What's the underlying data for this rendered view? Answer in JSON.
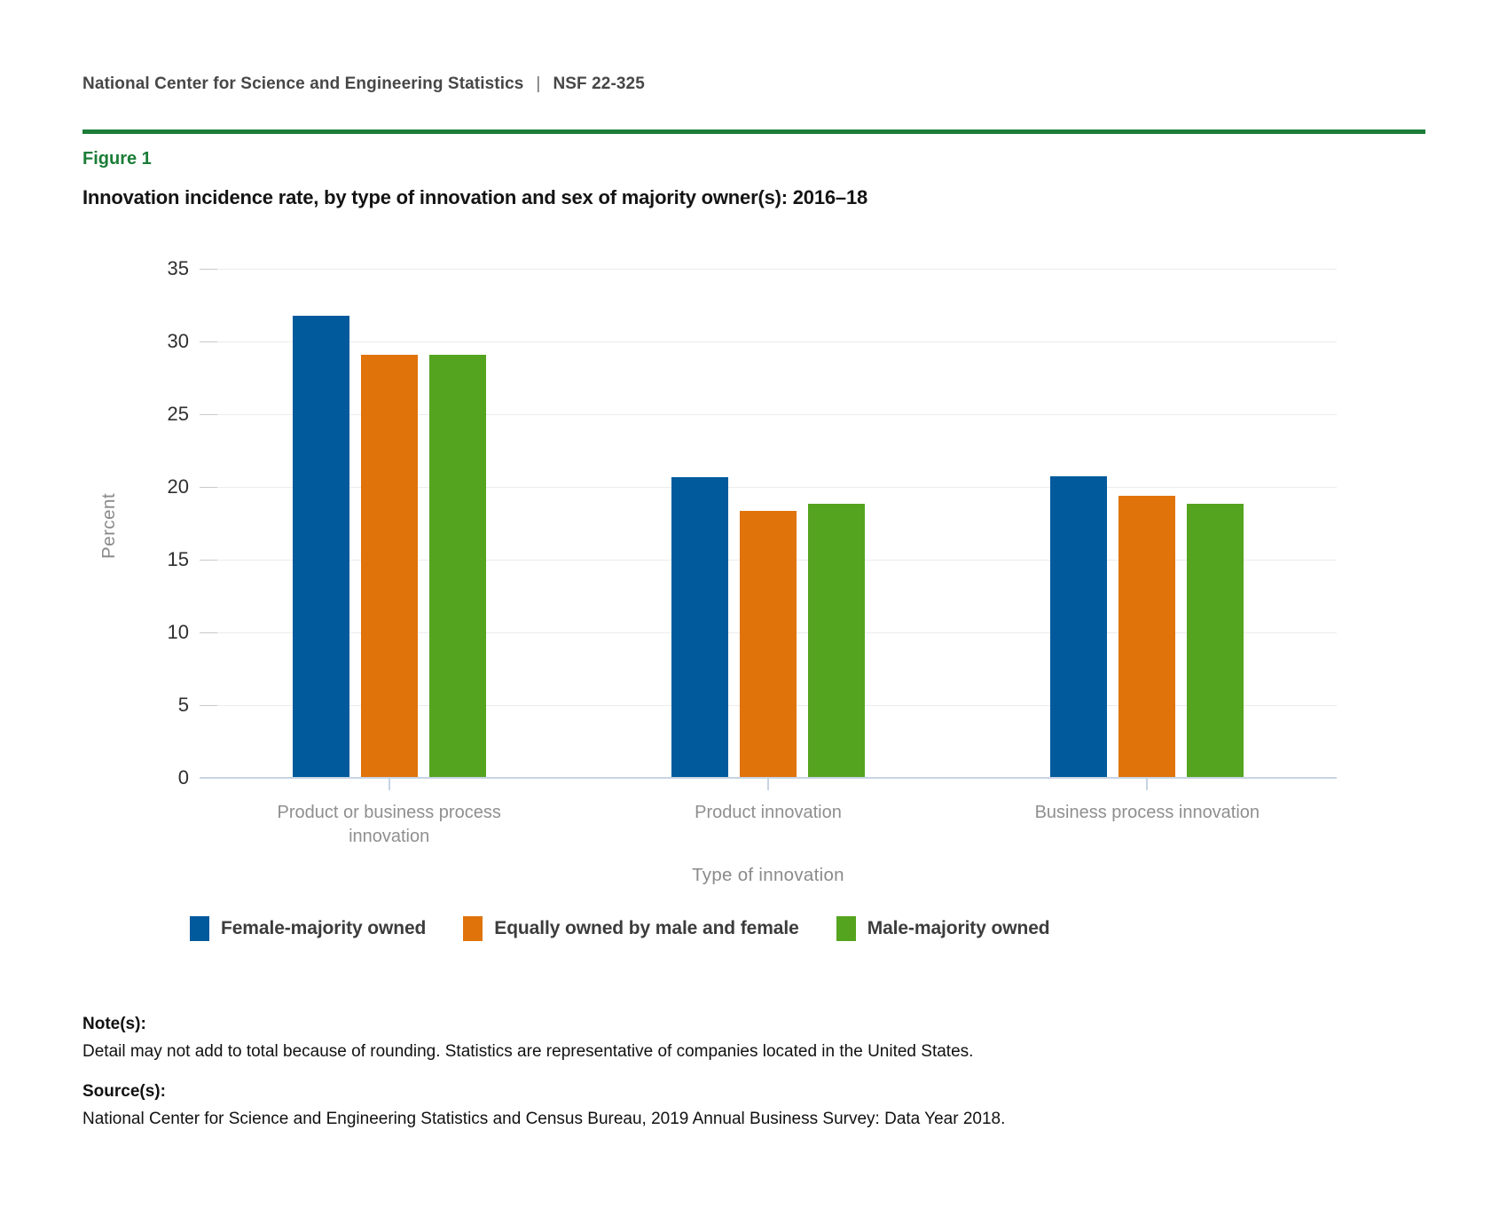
{
  "header": {
    "org": "National Center for Science and Engineering Statistics",
    "separator": "|",
    "report_number": "NSF 22-325"
  },
  "figure_label": "Figure 1",
  "title": "Innovation incidence rate, by type of innovation and sex of majority owner(s): 2016–18",
  "colors": {
    "accent_green": "#1b7d37",
    "axis_line": "#c8d4e4",
    "gridline": "#ececec",
    "blue": "#005a9c",
    "orange": "#e0730a",
    "green": "#55a41f"
  },
  "chart_data": {
    "type": "bar",
    "categories": [
      "Product or business process innovation",
      "Product innovation",
      "Business process innovation"
    ],
    "series": [
      {
        "name": "Female-majority owned",
        "color": "#005a9c",
        "values": [
          31.7,
          20.6,
          20.7
        ]
      },
      {
        "name": "Equally owned by male and female",
        "color": "#e0730a",
        "values": [
          29.0,
          18.3,
          19.3
        ]
      },
      {
        "name": "Male-majority owned",
        "color": "#55a41f",
        "values": [
          29.0,
          18.8,
          18.8
        ]
      }
    ],
    "xlabel": "Type of innovation",
    "ylabel": "Percent",
    "ylim": [
      0,
      35
    ],
    "ytick_step": 5,
    "grid": true,
    "legend_position": "bottom"
  },
  "notes": {
    "label": "Note(s):",
    "text": "Detail may not add to total because of rounding. Statistics are representative of companies located in the United States."
  },
  "source": {
    "label": "Source(s):",
    "text": "National Center for Science and Engineering Statistics and Census Bureau, 2019 Annual Business Survey: Data Year 2018."
  }
}
